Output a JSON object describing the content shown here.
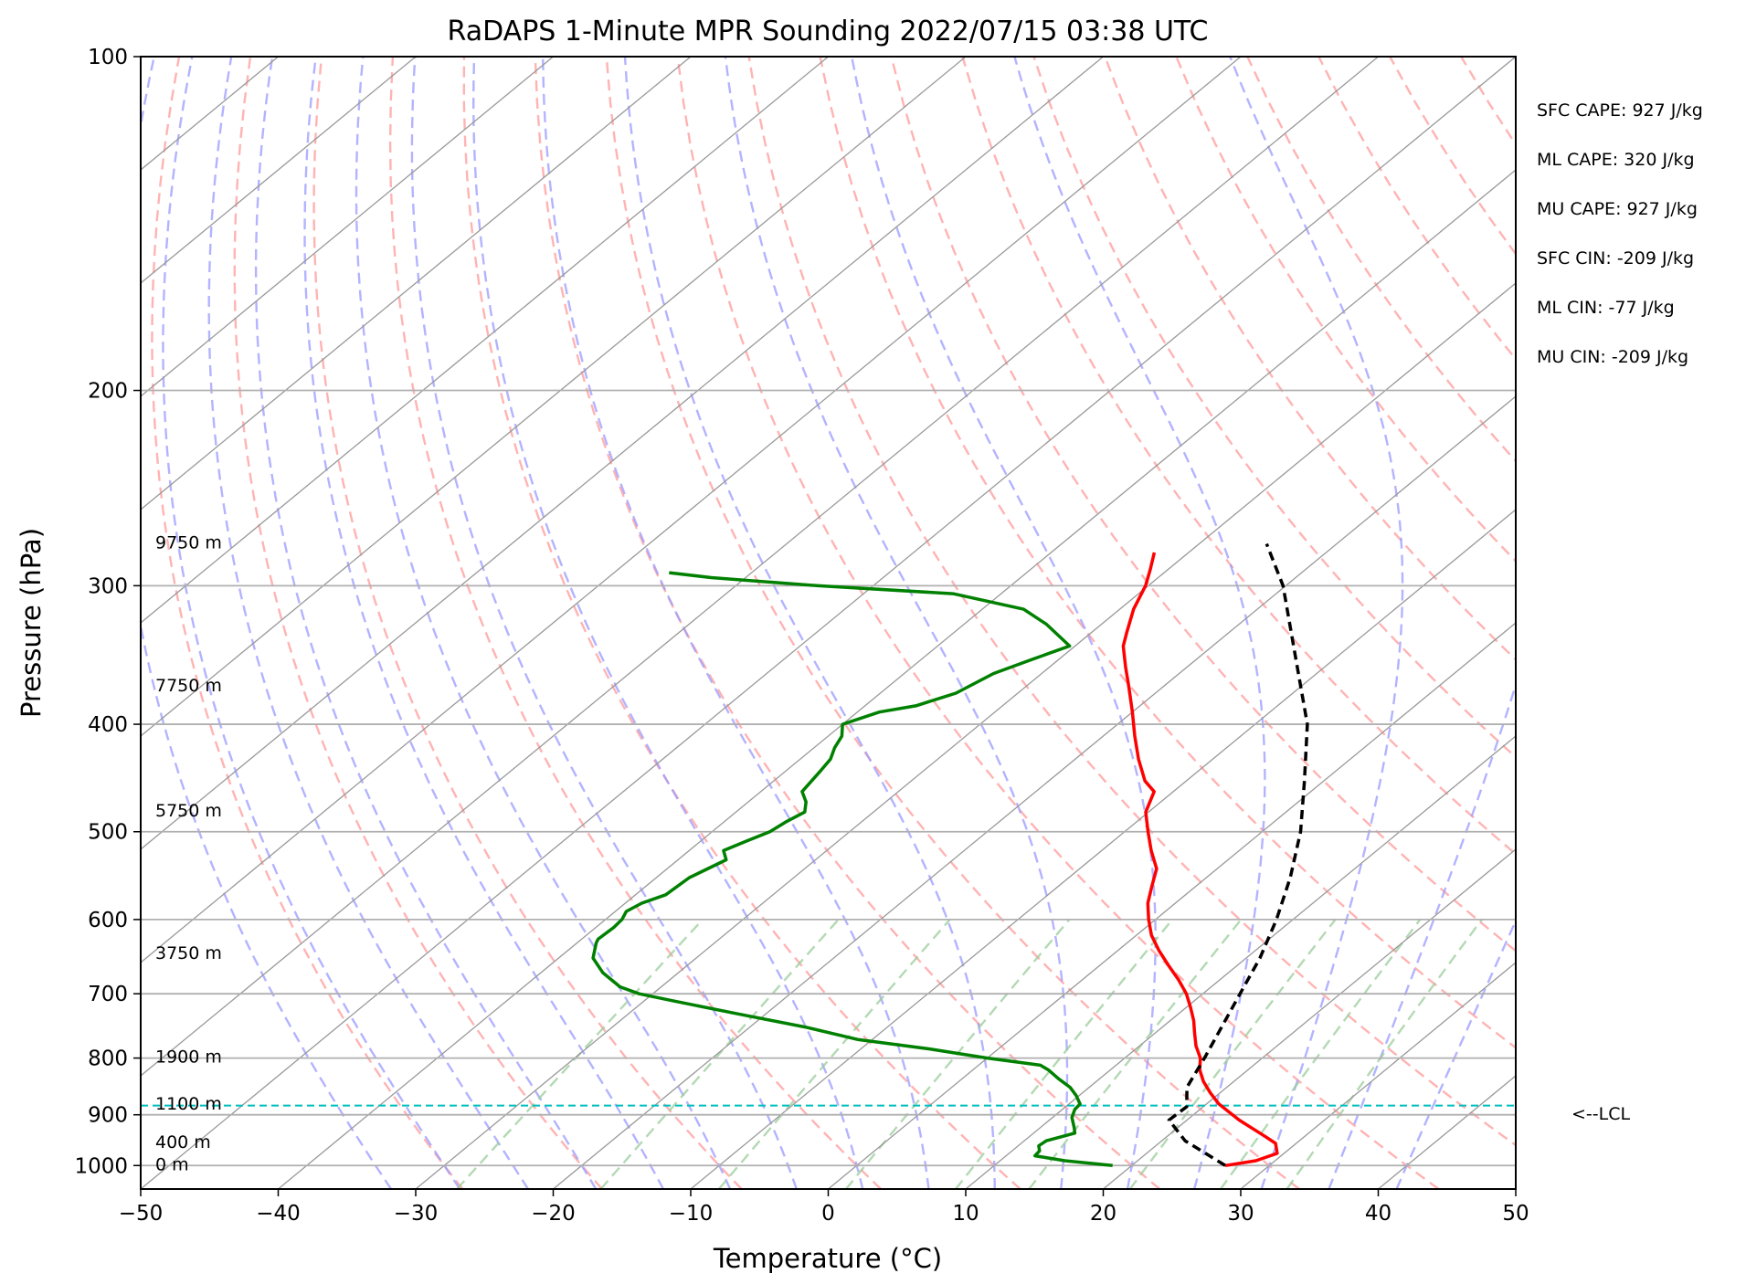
{
  "chart_data": {
    "type": "skew-t",
    "title": "RaDAPS 1-Minute MPR Sounding 2022/07/15 03:38 UTC",
    "xlabel": "Temperature (°C)",
    "ylabel": "Pressure (hPa)",
    "xlim": [
      -50,
      50
    ],
    "ylim": [
      1050,
      100
    ],
    "y_scale": "log",
    "x_ticks": [
      "−50",
      "−40",
      "−30",
      "−20",
      "−10",
      "0",
      "10",
      "20",
      "30",
      "40",
      "50"
    ],
    "y_ticks": [
      "100",
      "200",
      "300",
      "400",
      "500",
      "600",
      "700",
      "800",
      "900",
      "1000"
    ],
    "grid": true,
    "height_labels": [
      {
        "text": "0 m",
        "p": 1000
      },
      {
        "text": "400 m",
        "p": 955
      },
      {
        "text": "1100 m",
        "p": 882
      },
      {
        "text": "1900 m",
        "p": 800
      },
      {
        "text": "3750 m",
        "p": 645
      },
      {
        "text": "5750 m",
        "p": 480
      },
      {
        "text": "7750 m",
        "p": 370
      },
      {
        "text": "9750 m",
        "p": 275
      }
    ],
    "series": [
      {
        "kind": "temperature",
        "color": "#ff0000",
        "points": [
          [
            26.8,
            1000
          ],
          [
            28.6,
            990
          ],
          [
            29.5,
            975
          ],
          [
            28.5,
            955
          ],
          [
            27.2,
            942
          ],
          [
            23.8,
            910
          ],
          [
            20.9,
            880
          ],
          [
            19.3,
            860
          ],
          [
            17.8,
            840
          ],
          [
            16.5,
            820
          ],
          [
            15.5,
            800
          ],
          [
            14.1,
            780
          ],
          [
            12.9,
            760
          ],
          [
            11.7,
            740
          ],
          [
            10.3,
            720
          ],
          [
            8.8,
            700
          ],
          [
            7.0,
            680
          ],
          [
            5.0,
            660
          ],
          [
            3.0,
            640
          ],
          [
            1.1,
            620
          ],
          [
            -0.5,
            600
          ],
          [
            -2.0,
            580
          ],
          [
            -3.2,
            560
          ],
          [
            -4.4,
            540
          ],
          [
            -6.4,
            520
          ],
          [
            -8.3,
            500
          ],
          [
            -10.2,
            480
          ],
          [
            -11.4,
            460
          ],
          [
            -13.0,
            450
          ],
          [
            -15.4,
            430
          ],
          [
            -17.7,
            410
          ],
          [
            -20.0,
            390
          ],
          [
            -22.5,
            370
          ],
          [
            -24.5,
            355
          ],
          [
            -26.5,
            340
          ],
          [
            -27.5,
            330
          ],
          [
            -29.0,
            315
          ],
          [
            -30.2,
            300
          ],
          [
            -31.3,
            290
          ],
          [
            -32.5,
            280
          ]
        ]
      },
      {
        "kind": "dewpoint",
        "color": "#008000",
        "points": [
          [
            18.6,
            1000
          ],
          [
            14.7,
            990
          ],
          [
            12.1,
            980
          ],
          [
            12.0,
            970
          ],
          [
            11.5,
            960
          ],
          [
            11.6,
            950
          ],
          [
            13.0,
            935
          ],
          [
            12.5,
            925
          ],
          [
            11.4,
            905
          ],
          [
            10.9,
            890
          ],
          [
            10.8,
            880
          ],
          [
            9.8,
            865
          ],
          [
            8.6,
            850
          ],
          [
            7.0,
            835
          ],
          [
            5.5,
            820
          ],
          [
            4.5,
            812
          ],
          [
            0.0,
            800
          ],
          [
            -5.0,
            785
          ],
          [
            -11.0,
            770
          ],
          [
            -16.0,
            750
          ],
          [
            -22.0,
            730
          ],
          [
            -28.0,
            710
          ],
          [
            -31.0,
            700
          ],
          [
            -33.0,
            690
          ],
          [
            -35.5,
            670
          ],
          [
            -37.5,
            650
          ],
          [
            -38.6,
            630
          ],
          [
            -38.8,
            625
          ],
          [
            -38.7,
            610
          ],
          [
            -38.8,
            600
          ],
          [
            -39.2,
            590
          ],
          [
            -38.8,
            580
          ],
          [
            -37.8,
            570
          ],
          [
            -37.6,
            550
          ],
          [
            -36.5,
            530
          ],
          [
            -37.5,
            520
          ],
          [
            -36.7,
            510
          ],
          [
            -35.8,
            500
          ],
          [
            -35.5,
            490
          ],
          [
            -35.0,
            480
          ],
          [
            -35.8,
            470
          ],
          [
            -37.0,
            460
          ],
          [
            -37.5,
            440
          ],
          [
            -37.8,
            430
          ],
          [
            -38.5,
            420
          ],
          [
            -39.0,
            410
          ],
          [
            -40.0,
            400
          ],
          [
            -38.4,
            390
          ],
          [
            -36.3,
            385
          ],
          [
            -34.5,
            375
          ],
          [
            -33.5,
            360
          ],
          [
            -32.0,
            350
          ],
          [
            -30.4,
            340
          ],
          [
            -34.0,
            325
          ],
          [
            -37.0,
            315
          ],
          [
            -43.5,
            305
          ],
          [
            -54.0,
            300
          ],
          [
            -57.5,
            298
          ],
          [
            -62.5,
            295
          ],
          [
            -66.0,
            292
          ]
        ]
      },
      {
        "kind": "parcel",
        "color": "#000000",
        "points": [
          [
            26.8,
            1000
          ],
          [
            21.7,
            950
          ],
          [
            18.7,
            910
          ],
          [
            18.8,
            885
          ],
          [
            17.1,
            850
          ],
          [
            15.8,
            800
          ],
          [
            14.3,
            750
          ],
          [
            12.7,
            700
          ],
          [
            11.0,
            650
          ],
          [
            8.8,
            600
          ],
          [
            6.1,
            550
          ],
          [
            2.8,
            500
          ],
          [
            -1.4,
            450
          ],
          [
            -6.2,
            400
          ],
          [
            -12.7,
            350
          ],
          [
            -20.2,
            300
          ],
          [
            -25.1,
            275
          ]
        ]
      }
    ],
    "lcl": {
      "pressure": 883,
      "label": "<--LCL",
      "color": "#00bfbf"
    },
    "stats": [
      "SFC CAPE: 927 J/kg",
      "ML CAPE: 320 J/kg",
      "MU CAPE: 927 J/kg",
      "SFC CIN: -209 J/kg",
      "ML CIN: -77 J/kg",
      "MU CIN: -209 J/kg"
    ],
    "reference_lines": {
      "dry_adiabat_color": "#ff9999",
      "moist_adiabat_color": "#9999ff",
      "mixing_ratio_color": "#99cc99",
      "isotherm_color": "#999999"
    }
  }
}
